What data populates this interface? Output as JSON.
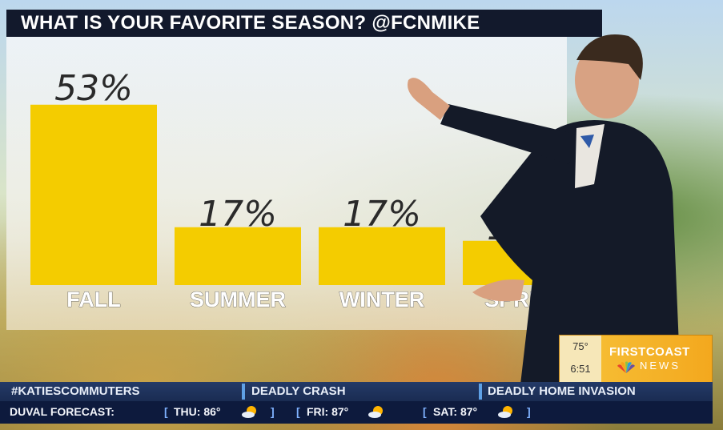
{
  "title": "WHAT IS YOUR FAVORITE SEASON? @FCNMIKE",
  "colors": {
    "bar": "#f4cc00",
    "title_bg": "#12192c",
    "ticker_bg": "#1a2c52"
  },
  "chart_data": {
    "type": "bar",
    "categories": [
      "FALL",
      "SUMMER",
      "WINTER",
      "SPRING"
    ],
    "values": [
      53,
      17,
      17,
      13
    ],
    "value_labels": [
      "53%",
      "17%",
      "17%",
      "13%"
    ],
    "ylim": [
      0,
      60
    ],
    "grid": false,
    "legend": "none"
  },
  "station": {
    "temp": "75°",
    "time": "6:51",
    "brand_top": "FIRSTCOAST",
    "brand_bottom": "NEWS",
    "icon": "nbc-peacock-icon"
  },
  "ticker_top": [
    "#KATIESCOMMUTERS",
    "DEADLY CRASH",
    "DEADLY HOME INVASION"
  ],
  "ticker_bottom": {
    "label": "DUVAL FORECAST:",
    "days": [
      {
        "text": "THU: 86°",
        "icon": "partly-sunny-icon"
      },
      {
        "text": "FRI: 87°",
        "icon": "partly-sunny-icon"
      },
      {
        "text": "SAT: 87°",
        "icon": "partly-sunny-icon"
      }
    ]
  }
}
